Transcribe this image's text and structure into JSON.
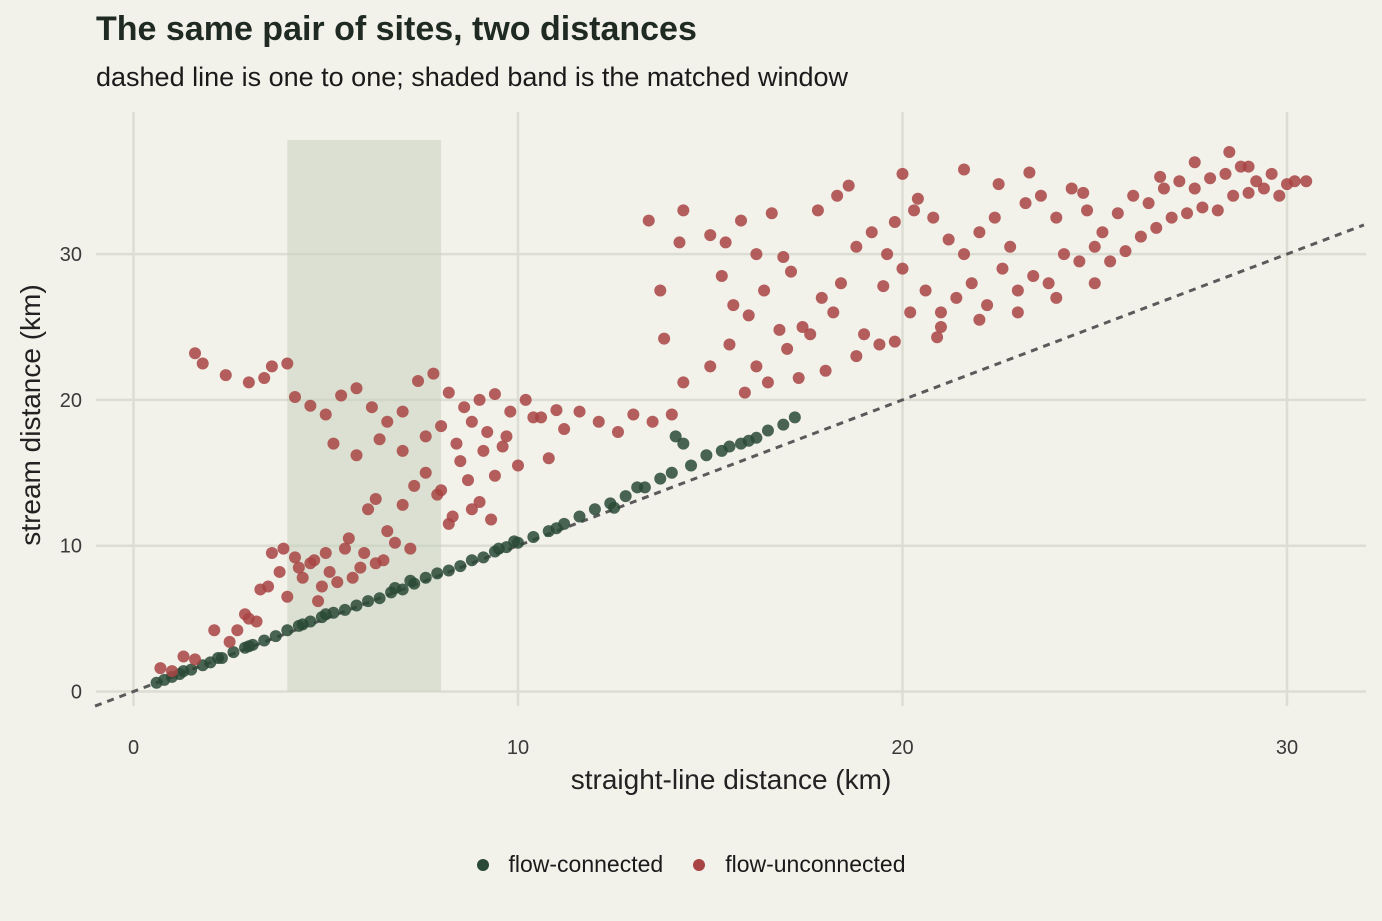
{
  "title": "The same pair of sites, two distances",
  "subtitle": "dashed line is one to one; shaded band is the matched window",
  "chart_data": {
    "type": "scatter",
    "title": "The same pair of sites, two distances",
    "subtitle": "dashed line is one to one; shaded band is the matched window",
    "xlabel": "straight-line distance (km)",
    "ylabel": "stream distance (km)",
    "xlim": [
      -1,
      32
    ],
    "ylim": [
      -1,
      38
    ],
    "x_ticks": [
      0,
      10,
      20,
      30
    ],
    "y_ticks": [
      0,
      10,
      20,
      30
    ],
    "grid": true,
    "legend_position": "bottom",
    "reference_line": {
      "slope": 1,
      "intercept": 0,
      "style": "dashed"
    },
    "shaded_band": {
      "x_from": 4,
      "x_to": 8
    },
    "series": [
      {
        "name": "flow-connected",
        "color": "#2a4a36",
        "points": [
          [
            0.6,
            0.6
          ],
          [
            0.8,
            0.8
          ],
          [
            1.0,
            1.0
          ],
          [
            1.2,
            1.2
          ],
          [
            1.5,
            1.5
          ],
          [
            1.8,
            1.8
          ],
          [
            2.0,
            2.0
          ],
          [
            2.3,
            2.3
          ],
          [
            2.6,
            2.7
          ],
          [
            2.9,
            3.0
          ],
          [
            3.1,
            3.2
          ],
          [
            3.4,
            3.5
          ],
          [
            3.7,
            3.8
          ],
          [
            4.0,
            4.2
          ],
          [
            4.3,
            4.5
          ],
          [
            4.6,
            4.8
          ],
          [
            4.9,
            5.1
          ],
          [
            5.2,
            5.4
          ],
          [
            5.5,
            5.6
          ],
          [
            5.8,
            5.9
          ],
          [
            6.1,
            6.2
          ],
          [
            6.4,
            6.4
          ],
          [
            6.7,
            6.8
          ],
          [
            7.0,
            7.0
          ],
          [
            7.3,
            7.4
          ],
          [
            7.6,
            7.8
          ],
          [
            7.9,
            8.1
          ],
          [
            8.2,
            8.3
          ],
          [
            8.5,
            8.6
          ],
          [
            8.8,
            9.0
          ],
          [
            9.1,
            9.2
          ],
          [
            9.4,
            9.6
          ],
          [
            9.7,
            9.9
          ],
          [
            10.0,
            10.2
          ],
          [
            10.4,
            10.6
          ],
          [
            10.8,
            11.0
          ],
          [
            11.2,
            11.5
          ],
          [
            11.6,
            12.0
          ],
          [
            12.0,
            12.5
          ],
          [
            12.4,
            12.9
          ],
          [
            12.8,
            13.4
          ],
          [
            13.3,
            14.0
          ],
          [
            13.7,
            14.6
          ],
          [
            14.0,
            15.0
          ],
          [
            14.5,
            15.5
          ],
          [
            14.9,
            16.2
          ],
          [
            15.3,
            16.5
          ],
          [
            15.8,
            17.0
          ],
          [
            16.2,
            17.4
          ],
          [
            16.5,
            17.9
          ],
          [
            16.9,
            18.3
          ],
          [
            17.2,
            18.8
          ],
          [
            14.1,
            17.5
          ],
          [
            14.3,
            17.0
          ],
          [
            12.5,
            12.6
          ],
          [
            11.0,
            11.2
          ],
          [
            9.5,
            9.8
          ],
          [
            7.2,
            7.6
          ],
          [
            5.0,
            5.3
          ],
          [
            3.0,
            3.1
          ],
          [
            13.1,
            14.0
          ],
          [
            15.5,
            16.8
          ],
          [
            16.0,
            17.2
          ],
          [
            9.9,
            10.3
          ],
          [
            6.8,
            7.1
          ],
          [
            4.4,
            4.6
          ],
          [
            2.2,
            2.3
          ],
          [
            1.3,
            1.4
          ]
        ]
      },
      {
        "name": "flow-unconnected",
        "color": "#a84444",
        "points": [
          [
            0.7,
            1.6
          ],
          [
            1.0,
            1.4
          ],
          [
            1.3,
            2.4
          ],
          [
            1.6,
            2.2
          ],
          [
            2.1,
            4.2
          ],
          [
            2.5,
            3.4
          ],
          [
            2.9,
            5.3
          ],
          [
            3.2,
            4.8
          ],
          [
            3.5,
            7.2
          ],
          [
            3.6,
            9.5
          ],
          [
            3.8,
            8.2
          ],
          [
            4.0,
            6.5
          ],
          [
            4.2,
            9.2
          ],
          [
            4.4,
            7.8
          ],
          [
            4.6,
            8.8
          ],
          [
            4.8,
            6.2
          ],
          [
            5.0,
            9.5
          ],
          [
            5.3,
            7.5
          ],
          [
            5.6,
            10.5
          ],
          [
            5.9,
            8.5
          ],
          [
            6.1,
            12.5
          ],
          [
            6.3,
            13.2
          ],
          [
            6.6,
            11.0
          ],
          [
            6.8,
            10.2
          ],
          [
            7.0,
            12.8
          ],
          [
            7.3,
            14.1
          ],
          [
            7.6,
            15.0
          ],
          [
            7.9,
            13.5
          ],
          [
            8.2,
            11.5
          ],
          [
            8.5,
            15.8
          ],
          [
            8.8,
            12.5
          ],
          [
            9.1,
            16.5
          ],
          [
            9.4,
            14.8
          ],
          [
            9.7,
            17.5
          ],
          [
            10.0,
            15.5
          ],
          [
            10.4,
            18.8
          ],
          [
            10.8,
            16.0
          ],
          [
            11.2,
            18.0
          ],
          [
            11.6,
            19.2
          ],
          [
            12.1,
            18.5
          ],
          [
            12.6,
            17.8
          ],
          [
            13.0,
            19.0
          ],
          [
            13.5,
            18.5
          ],
          [
            14.0,
            19.0
          ],
          [
            14.3,
            21.2
          ],
          [
            13.8,
            24.2
          ],
          [
            13.4,
            32.3
          ],
          [
            14.2,
            30.8
          ],
          [
            14.3,
            33.0
          ],
          [
            13.7,
            27.5
          ],
          [
            1.6,
            23.2
          ],
          [
            1.8,
            22.5
          ],
          [
            2.4,
            21.7
          ],
          [
            3.0,
            21.2
          ],
          [
            3.4,
            21.5
          ],
          [
            3.6,
            22.3
          ],
          [
            4.0,
            22.5
          ],
          [
            4.2,
            20.2
          ],
          [
            4.6,
            19.6
          ],
          [
            5.0,
            19.0
          ],
          [
            5.4,
            20.3
          ],
          [
            5.8,
            20.8
          ],
          [
            6.2,
            19.5
          ],
          [
            6.6,
            18.5
          ],
          [
            7.0,
            19.2
          ],
          [
            7.4,
            21.3
          ],
          [
            7.8,
            21.8
          ],
          [
            8.2,
            20.5
          ],
          [
            8.6,
            19.5
          ],
          [
            9.0,
            20.0
          ],
          [
            9.4,
            20.4
          ],
          [
            9.8,
            19.2
          ],
          [
            10.2,
            20.0
          ],
          [
            10.6,
            18.8
          ],
          [
            11.0,
            19.3
          ],
          [
            5.2,
            17.0
          ],
          [
            5.8,
            16.2
          ],
          [
            6.4,
            17.3
          ],
          [
            7.0,
            16.5
          ],
          [
            7.6,
            17.5
          ],
          [
            8.0,
            18.2
          ],
          [
            8.4,
            17.0
          ],
          [
            8.8,
            18.5
          ],
          [
            9.2,
            17.8
          ],
          [
            9.6,
            16.8
          ],
          [
            3.9,
            9.8
          ],
          [
            4.3,
            8.5
          ],
          [
            4.7,
            9.0
          ],
          [
            5.1,
            8.2
          ],
          [
            5.5,
            9.8
          ],
          [
            6.0,
            9.5
          ],
          [
            6.5,
            9.0
          ],
          [
            7.2,
            9.8
          ],
          [
            3.3,
            7.0
          ],
          [
            3.0,
            5.0
          ],
          [
            2.7,
            4.2
          ],
          [
            4.9,
            7.2
          ],
          [
            5.7,
            7.8
          ],
          [
            6.3,
            8.8
          ],
          [
            8.0,
            13.8
          ],
          [
            8.3,
            12.0
          ],
          [
            8.7,
            14.5
          ],
          [
            9.0,
            13.0
          ],
          [
            9.3,
            11.8
          ],
          [
            15.0,
            31.3
          ],
          [
            15.4,
            30.8
          ],
          [
            15.8,
            32.3
          ],
          [
            16.2,
            30.0
          ],
          [
            16.6,
            32.8
          ],
          [
            16.9,
            29.8
          ],
          [
            15.3,
            28.5
          ],
          [
            15.6,
            26.5
          ],
          [
            16.0,
            25.8
          ],
          [
            16.4,
            27.5
          ],
          [
            17.1,
            28.8
          ],
          [
            16.8,
            24.8
          ],
          [
            15.0,
            22.3
          ],
          [
            15.5,
            23.8
          ],
          [
            16.2,
            22.3
          ],
          [
            17.0,
            23.5
          ],
          [
            17.6,
            24.5
          ],
          [
            18.0,
            22.0
          ],
          [
            17.3,
            21.5
          ],
          [
            16.5,
            21.2
          ],
          [
            15.9,
            20.5
          ],
          [
            17.9,
            27.0
          ],
          [
            18.4,
            28.0
          ],
          [
            18.8,
            30.5
          ],
          [
            17.8,
            33.0
          ],
          [
            18.3,
            34.0
          ],
          [
            18.6,
            34.7
          ],
          [
            19.2,
            31.5
          ],
          [
            19.6,
            30.0
          ],
          [
            20.0,
            35.5
          ],
          [
            20.4,
            33.8
          ],
          [
            20.8,
            32.5
          ],
          [
            21.2,
            31.0
          ],
          [
            21.6,
            30.0
          ],
          [
            22.0,
            31.5
          ],
          [
            22.4,
            32.5
          ],
          [
            22.8,
            30.5
          ],
          [
            23.2,
            33.5
          ],
          [
            23.6,
            34.0
          ],
          [
            24.0,
            32.5
          ],
          [
            24.4,
            34.5
          ],
          [
            24.8,
            33.0
          ],
          [
            25.2,
            31.5
          ],
          [
            25.6,
            32.8
          ],
          [
            26.0,
            34.0
          ],
          [
            26.4,
            33.5
          ],
          [
            26.8,
            34.5
          ],
          [
            27.2,
            35.0
          ],
          [
            27.6,
            34.5
          ],
          [
            28.0,
            35.2
          ],
          [
            28.4,
            35.5
          ],
          [
            28.8,
            36.0
          ],
          [
            29.2,
            35.0
          ],
          [
            29.6,
            35.5
          ],
          [
            30.0,
            34.8
          ],
          [
            30.5,
            35.0
          ],
          [
            19.0,
            24.5
          ],
          [
            19.4,
            23.8
          ],
          [
            19.8,
            24.0
          ],
          [
            20.2,
            26.0
          ],
          [
            20.6,
            27.5
          ],
          [
            21.0,
            26.0
          ],
          [
            21.4,
            27.0
          ],
          [
            21.8,
            28.0
          ],
          [
            22.2,
            26.5
          ],
          [
            22.6,
            29.0
          ],
          [
            23.0,
            27.5
          ],
          [
            23.4,
            28.5
          ],
          [
            23.8,
            28.0
          ],
          [
            24.2,
            30.0
          ],
          [
            24.6,
            29.5
          ],
          [
            25.0,
            30.5
          ],
          [
            25.4,
            29.5
          ],
          [
            25.8,
            30.2
          ],
          [
            26.2,
            31.2
          ],
          [
            26.6,
            31.8
          ],
          [
            27.0,
            32.5
          ],
          [
            27.4,
            32.8
          ],
          [
            27.8,
            33.2
          ],
          [
            28.2,
            33.0
          ],
          [
            28.6,
            34.0
          ],
          [
            29.0,
            34.2
          ],
          [
            29.4,
            34.5
          ],
          [
            29.8,
            34.0
          ],
          [
            30.2,
            35.0
          ],
          [
            20.0,
            29.0
          ],
          [
            21.0,
            25.0
          ],
          [
            22.0,
            25.5
          ],
          [
            23.0,
            26.0
          ],
          [
            24.0,
            27.0
          ],
          [
            25.0,
            28.0
          ],
          [
            18.2,
            26.0
          ],
          [
            17.4,
            25.0
          ],
          [
            18.8,
            23.0
          ],
          [
            19.5,
            27.8
          ],
          [
            20.9,
            24.3
          ],
          [
            28.5,
            37.0
          ],
          [
            27.6,
            36.3
          ],
          [
            29.0,
            36.0
          ],
          [
            26.7,
            35.3
          ],
          [
            22.5,
            34.8
          ],
          [
            21.6,
            35.8
          ],
          [
            23.3,
            35.6
          ],
          [
            24.7,
            34.2
          ],
          [
            20.3,
            33.0
          ],
          [
            19.8,
            32.2
          ]
        ]
      }
    ]
  }
}
